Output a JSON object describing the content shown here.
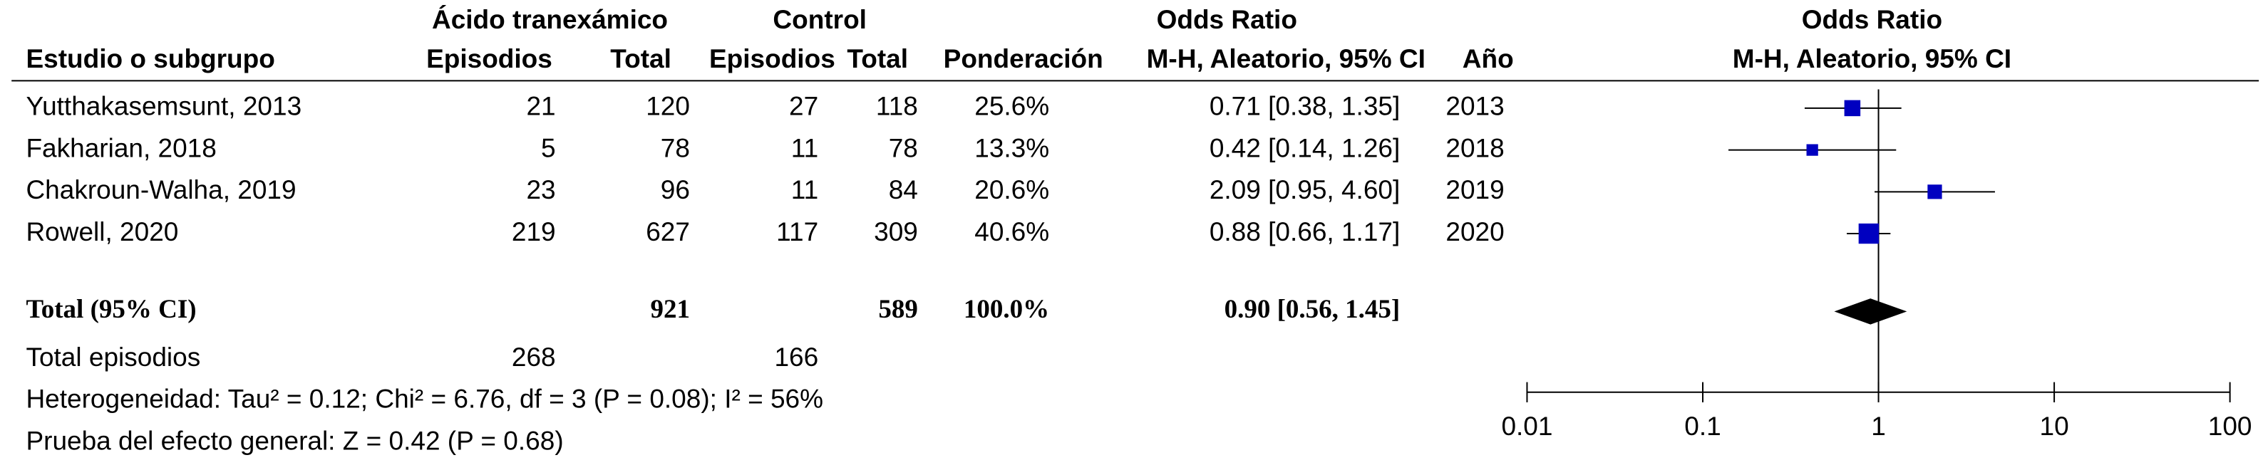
{
  "chart_data": {
    "type": "forest",
    "group_headers": {
      "treatment": "Ácido tranexámico",
      "control": "Control",
      "estimate": "Odds Ratio"
    },
    "columns": [
      "Estudio o subgrupo",
      "Episodios",
      "Total",
      "Episodios",
      "Total",
      "Ponderación",
      "M-H, Aleatorio, 95% CI",
      "Año"
    ],
    "plot_title": "Odds Ratio",
    "plot_subtitle": "M-H, Aleatorio, 95% CI",
    "marker_color": "#0000c0",
    "studies": [
      {
        "name": "Yutthakasemsunt, 2013",
        "events_t": 21,
        "total_t": 120,
        "events_c": 27,
        "total_c": 118,
        "weight": 25.6,
        "weight_label": "25.6%",
        "or": 0.71,
        "ci_low": 0.38,
        "ci_high": 1.35,
        "ci_label": "0.71 [0.38, 1.35]",
        "year": 2013
      },
      {
        "name": "Fakharian, 2018",
        "events_t": 5,
        "total_t": 78,
        "events_c": 11,
        "total_c": 78,
        "weight": 13.3,
        "weight_label": "13.3%",
        "or": 0.42,
        "ci_low": 0.14,
        "ci_high": 1.26,
        "ci_label": "0.42 [0.14, 1.26]",
        "year": 2018
      },
      {
        "name": "Chakroun-Walha, 2019",
        "events_t": 23,
        "total_t": 96,
        "events_c": 11,
        "total_c": 84,
        "weight": 20.6,
        "weight_label": "20.6%",
        "or": 2.09,
        "ci_low": 0.95,
        "ci_high": 4.6,
        "ci_label": "2.09 [0.95, 4.60]",
        "year": 2019
      },
      {
        "name": "Rowell, 2020",
        "events_t": 219,
        "total_t": 627,
        "events_c": 117,
        "total_c": 309,
        "weight": 40.6,
        "weight_label": "40.6%",
        "or": 0.88,
        "ci_low": 0.66,
        "ci_high": 1.17,
        "ci_label": "0.88 [0.66, 1.17]",
        "year": 2020
      }
    ],
    "total": {
      "name": "Total (95% CI)",
      "total_t": 921,
      "total_c": 589,
      "weight_label": "100.0%",
      "or": 0.9,
      "ci_low": 0.56,
      "ci_high": 1.45,
      "ci_label": "0.90 [0.56, 1.45]"
    },
    "total_events": {
      "name": "Total episodios",
      "events_t": 268,
      "events_c": 166
    },
    "heterogeneity": "Heterogeneidad: Tau² = 0.12; Chi² = 6.76, df = 3 (P = 0.08); I² = 56%",
    "overall_test": "Prueba del efecto general: Z = 0.42 (P = 0.68)",
    "log_x": true,
    "xlim": [
      0.01,
      100
    ],
    "xticks": [
      0.01,
      0.1,
      1,
      10,
      100
    ]
  }
}
